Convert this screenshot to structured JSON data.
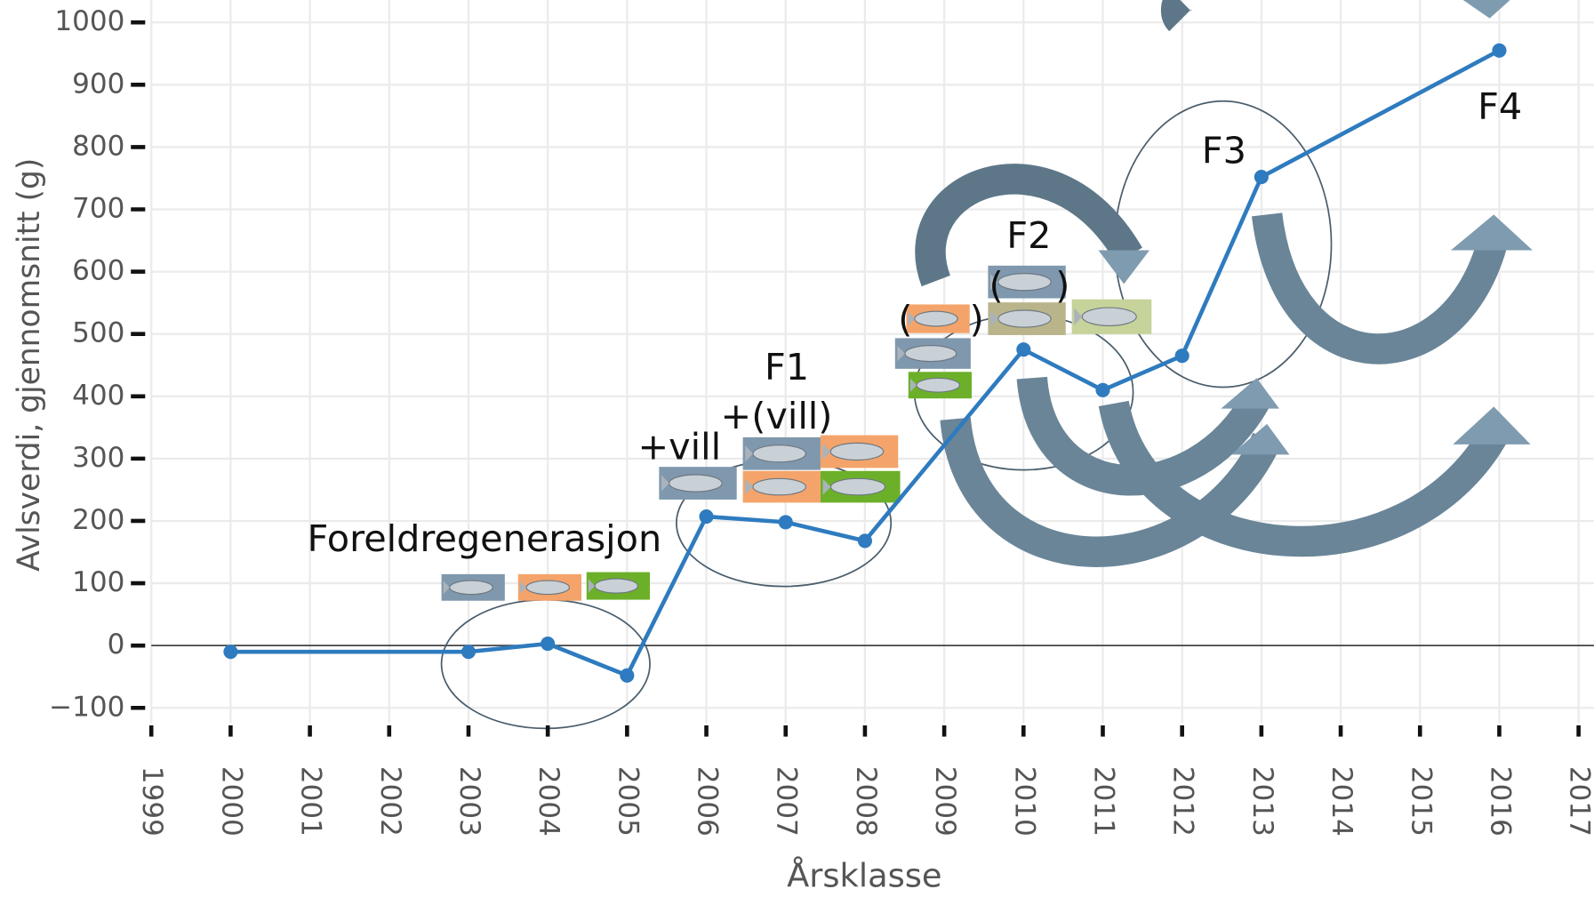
{
  "chart_data": {
    "type": "line",
    "x_label": "Årsklasse",
    "y_label": "Avlsverdi, gjennomsnitt (g)",
    "x": [
      2000,
      2003,
      2004,
      2005,
      2006,
      2007,
      2008,
      2010,
      2011,
      2012,
      2013,
      2016
    ],
    "values": [
      -10,
      -10,
      3,
      -48,
      207,
      198,
      168,
      475,
      410,
      465,
      752,
      955
    ],
    "color": "#2e7bbf",
    "xlim": [
      1999,
      2017
    ],
    "xticks": [
      1999,
      2000,
      2001,
      2002,
      2003,
      2004,
      2005,
      2006,
      2007,
      2008,
      2009,
      2010,
      2011,
      2012,
      2013,
      2014,
      2015,
      2016,
      2017
    ],
    "ylim": [
      -133,
      1036
    ],
    "yticks": [
      {
        "value": -100,
        "label": "−100"
      },
      0,
      100,
      200,
      300,
      400,
      500,
      600,
      700,
      800,
      900,
      1000
    ],
    "grid": true,
    "annotations": [
      "Foreldregenerasjon",
      "+vill",
      "F1",
      "+(vill)",
      "F2",
      "(",
      ")",
      "(",
      ")",
      "F3",
      "F4"
    ]
  }
}
